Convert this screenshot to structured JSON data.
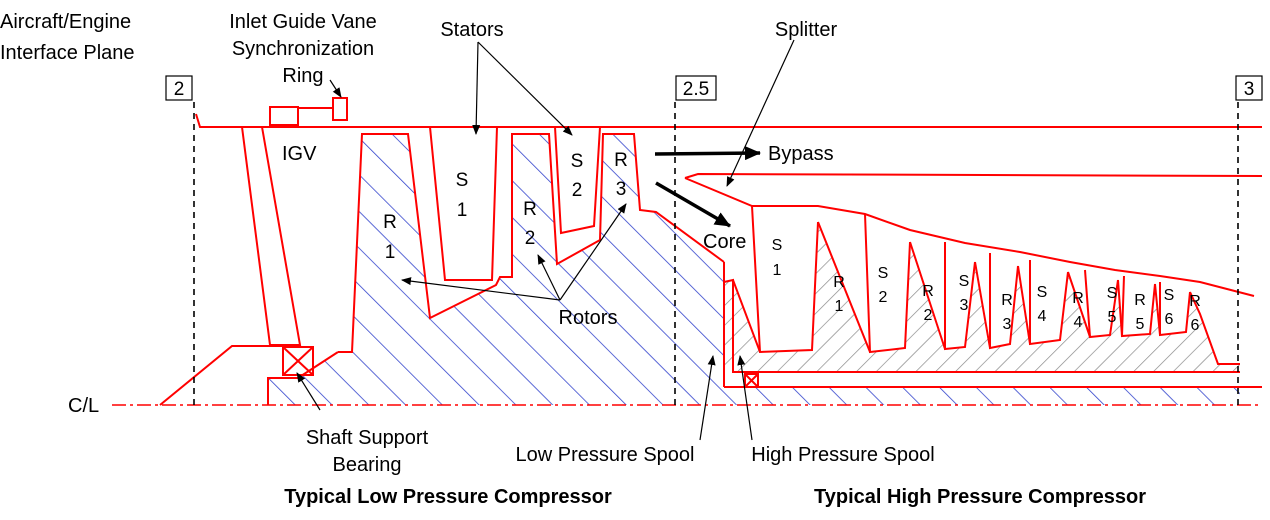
{
  "labels": {
    "interface_line1": "Aircraft/Engine",
    "interface_line2": "Interface Plane",
    "igv_ring_line1": "Inlet Guide Vane",
    "igv_ring_line2": "Synchronization",
    "igv_ring_line3": "Ring",
    "stators": "Stators",
    "splitter": "Splitter",
    "bypass": "Bypass",
    "core": "Core",
    "igv": "IGV",
    "rotors": "Rotors",
    "centerline": "C/L",
    "bearing_line1": "Shaft Support",
    "bearing_line2": "Bearing",
    "lp_spool": "Low Pressure Spool",
    "hp_spool": "High Pressure Spool"
  },
  "stations": {
    "s2": "2",
    "s25": "2.5",
    "s3": "3"
  },
  "titles": {
    "lpc": "Typical Low Pressure Compressor",
    "hpc": "Typical High Pressure Compressor"
  },
  "lpc_blades": {
    "r1": [
      "R",
      "1"
    ],
    "s1": [
      "S",
      "1"
    ],
    "r2": [
      "R",
      "2"
    ],
    "s2": [
      "S",
      "2"
    ],
    "r3": [
      "R",
      "3"
    ]
  },
  "hpc_blades": {
    "s1": [
      "S",
      "1"
    ],
    "r1": [
      "R",
      "1"
    ],
    "s2": [
      "S",
      "2"
    ],
    "r2": [
      "R",
      "2"
    ],
    "s3": [
      "S",
      "3"
    ],
    "r3": [
      "R",
      "3"
    ],
    "s4": [
      "S",
      "4"
    ],
    "r4": [
      "R",
      "4"
    ],
    "s5": [
      "S",
      "5"
    ],
    "r5": [
      "R",
      "5"
    ],
    "s6": [
      "S",
      "6"
    ],
    "r6": [
      "R",
      "6"
    ]
  },
  "colors": {
    "outline": "#ff0000",
    "lp_hatch": "#3344cc",
    "hp_hatch": "#888888",
    "ink": "#000000"
  }
}
